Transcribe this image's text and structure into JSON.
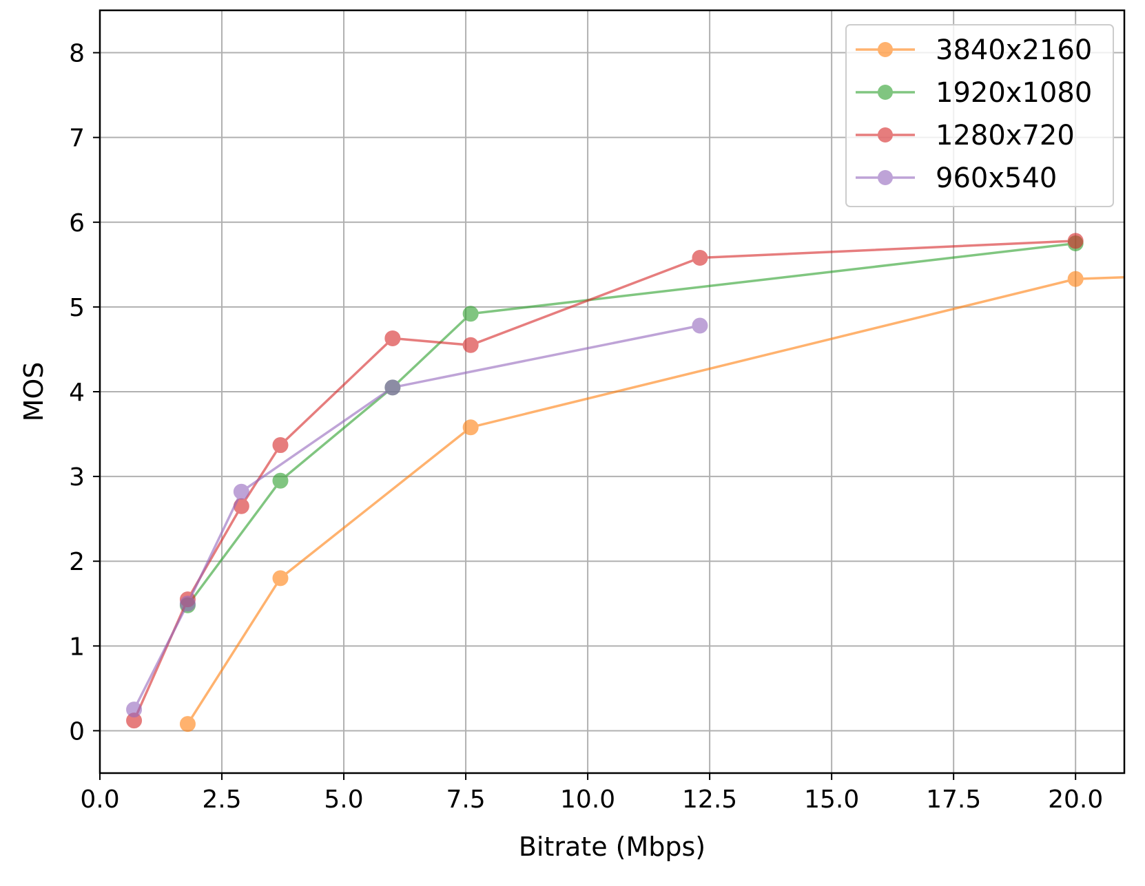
{
  "chart_data": {
    "type": "line",
    "title": "",
    "xlabel": "Bitrate (Mbps)",
    "ylabel": "MOS",
    "xlim": [
      0,
      21
    ],
    "ylim": [
      -0.5,
      8.5
    ],
    "xticks": [
      "0.0",
      "2.5",
      "5.0",
      "7.5",
      "10.0",
      "12.5",
      "15.0",
      "17.5",
      "20.0"
    ],
    "yticks": [
      "0",
      "1",
      "2",
      "3",
      "4",
      "5",
      "6",
      "7",
      "8"
    ],
    "grid": true,
    "legend_position": "top-right",
    "series": [
      {
        "name": "3840x2160",
        "color": "#ff7f0e",
        "x": [
          1.8,
          3.7,
          7.6,
          20.0
        ],
        "y": [
          0.08,
          1.8,
          3.58,
          5.33
        ],
        "tail": [
          21.0,
          5.35
        ]
      },
      {
        "name": "1920x1080",
        "color": "#2ca02c",
        "x": [
          1.8,
          3.7,
          6.0,
          7.6,
          20.0
        ],
        "y": [
          1.48,
          2.95,
          4.05,
          4.92,
          5.75
        ]
      },
      {
        "name": "1280x720",
        "color": "#d62728",
        "x": [
          0.7,
          1.8,
          2.9,
          3.7,
          6.0,
          7.6,
          12.3,
          20.0
        ],
        "y": [
          0.12,
          1.55,
          2.65,
          3.37,
          4.63,
          4.55,
          5.58,
          5.78
        ]
      },
      {
        "name": "960x540",
        "color": "#9467bd",
        "x": [
          0.7,
          1.8,
          2.9,
          6.0,
          12.3
        ],
        "y": [
          0.25,
          1.5,
          2.82,
          4.05,
          4.78
        ]
      }
    ]
  }
}
